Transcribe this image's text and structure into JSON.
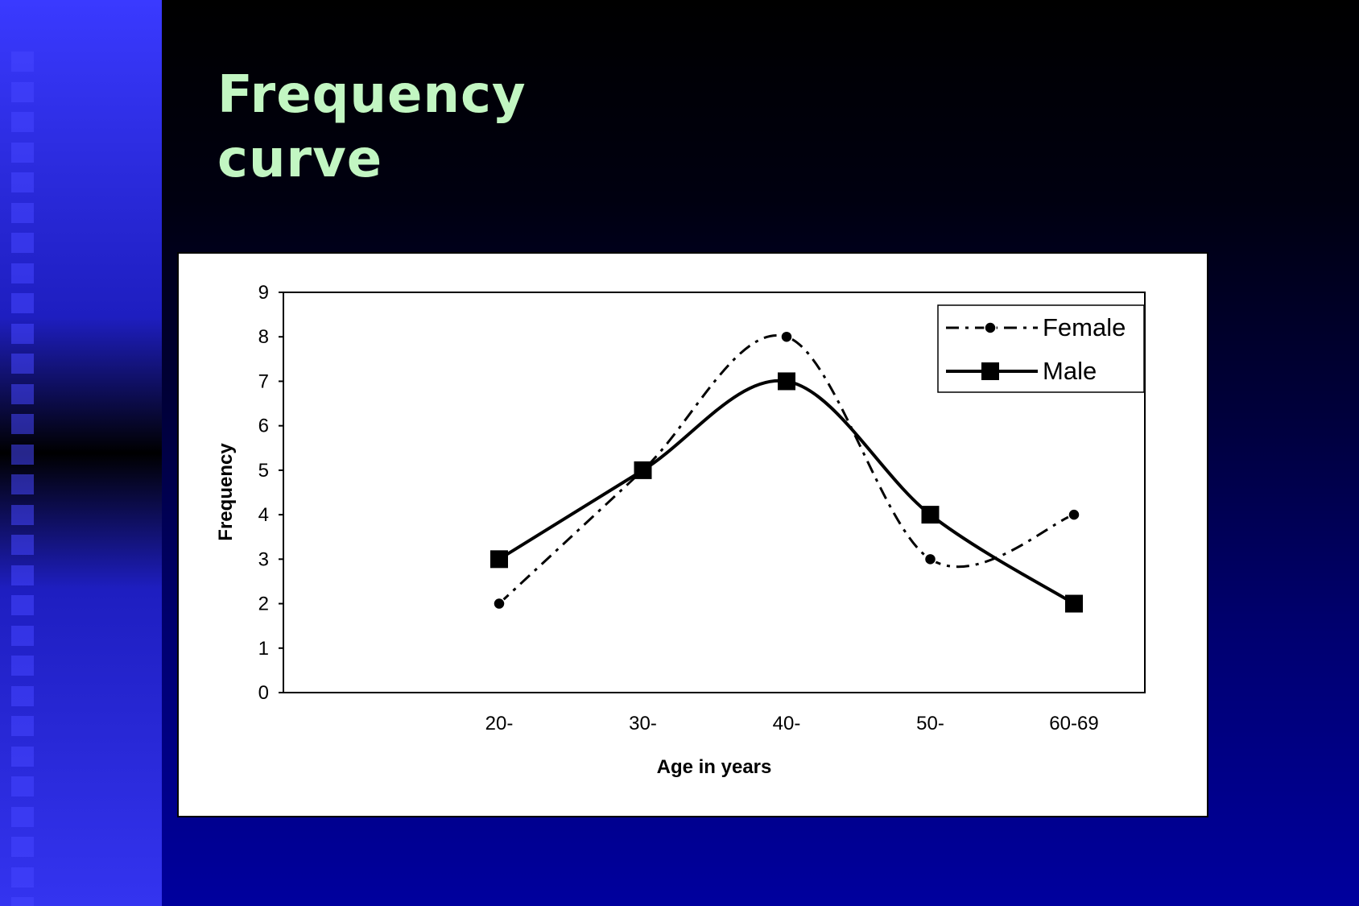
{
  "slide": {
    "title_line1": "Frequency",
    "title_line2": "curve"
  },
  "colors": {
    "title": "#c2f6c2",
    "sidebar": "#3a3aff",
    "background_top": "#000000",
    "background_bottom": "#00009e"
  },
  "chart_data": {
    "type": "line",
    "categories": [
      "20-",
      "30-",
      "40-",
      "50-",
      "60-69"
    ],
    "xlabel": "Age in years",
    "ylabel": "Frequency",
    "ylim": [
      0,
      9
    ],
    "yticks": [
      0,
      1,
      2,
      3,
      4,
      5,
      6,
      7,
      8,
      9
    ],
    "smoothed": true,
    "grid": false,
    "legend_position": "top-right",
    "series": [
      {
        "name": "Female",
        "values": [
          2,
          5,
          8,
          3,
          4
        ],
        "line_style": "dash-dot",
        "marker": "circle"
      },
      {
        "name": "Male",
        "values": [
          3,
          5,
          7,
          4,
          2
        ],
        "line_style": "solid",
        "marker": "square"
      }
    ]
  }
}
